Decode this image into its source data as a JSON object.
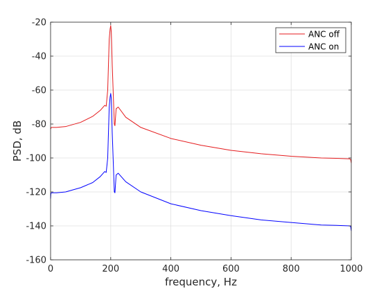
{
  "chart_data": {
    "type": "line",
    "title": "",
    "xlabel": "frequency, Hz",
    "ylabel": "PSD, dB",
    "xlim": [
      0,
      1000
    ],
    "ylim": [
      -160,
      -20
    ],
    "xticks": [
      0,
      200,
      400,
      600,
      800,
      1000
    ],
    "yticks": [
      -160,
      -140,
      -120,
      -100,
      -80,
      -60,
      -40,
      -20
    ],
    "grid": true,
    "legend_placement": "top-right",
    "series": [
      {
        "name": "ANC off",
        "color": "#e41a1c",
        "x": [
          0,
          1,
          3,
          20,
          50,
          100,
          140,
          165,
          180,
          185,
          190,
          195,
          198,
          200,
          202,
          205,
          210,
          212,
          214,
          218,
          225,
          250,
          300,
          400,
          500,
          600,
          700,
          800,
          900,
          950,
          995,
          998,
          1000
        ],
        "y": [
          -83,
          -82.5,
          -82,
          -82,
          -81.5,
          -79,
          -75.5,
          -72,
          -69,
          -69.5,
          -60,
          -30,
          -24,
          -22,
          -26,
          -45,
          -70,
          -80,
          -81,
          -71,
          -70,
          -76,
          -82,
          -88.5,
          -92.5,
          -95.5,
          -97.5,
          -99,
          -100,
          -100.2,
          -100.5,
          -101,
          -103
        ]
      },
      {
        "name": "ANC on",
        "color": "#0000ff",
        "x": [
          0,
          1,
          3,
          20,
          50,
          100,
          140,
          165,
          180,
          185,
          190,
          195,
          198,
          200,
          202,
          205,
          210,
          212,
          214,
          218,
          225,
          250,
          300,
          400,
          500,
          600,
          700,
          800,
          900,
          950,
          995,
          998,
          1000
        ],
        "y": [
          -124,
          -121,
          -120.5,
          -120.5,
          -120,
          -117.5,
          -114.5,
          -111,
          -108,
          -108.5,
          -100,
          -70,
          -64,
          -62,
          -65,
          -85,
          -110,
          -120,
          -120.5,
          -110,
          -109,
          -114,
          -120,
          -127,
          -131,
          -134,
          -136.5,
          -138,
          -139.5,
          -139.7,
          -140,
          -140.5,
          -143
        ]
      }
    ]
  }
}
